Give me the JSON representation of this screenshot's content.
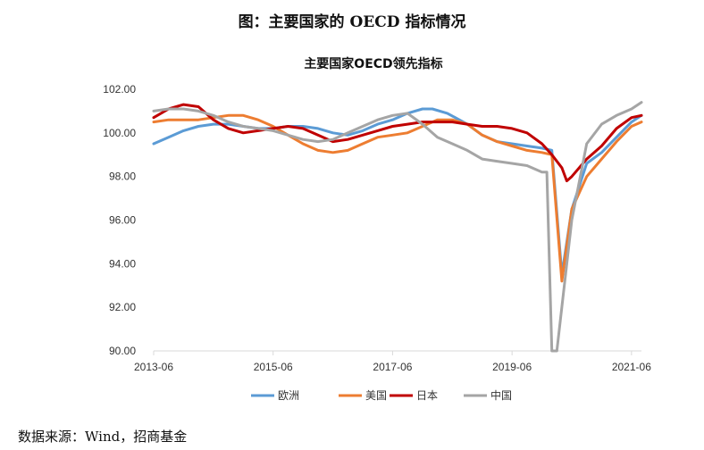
{
  "figure_title": "图：主要国家的 OECD 指标情况",
  "source_note": "数据来源：Wind，招商基金",
  "chart_data": {
    "type": "line",
    "title": "主要国家OECD领先指标",
    "xlabel": "",
    "ylabel": "",
    "ylim": [
      90,
      102
    ],
    "y_ticks": [
      "90.00",
      "92.00",
      "94.00",
      "96.00",
      "98.00",
      "100.00",
      "102.00"
    ],
    "x_tick_labels": [
      "2013-06",
      "2015-06",
      "2017-06",
      "2019-06",
      "2021-06"
    ],
    "x_range": [
      "2013-06",
      "2021-08"
    ],
    "grid": false,
    "legend_position": "bottom",
    "colors": {
      "欧洲": "#5b9bd5",
      "美国": "#ed7d31",
      "日本": "#c00000",
      "中国": "#a5a5a5"
    },
    "series": [
      {
        "name": "欧洲",
        "color": "#5b9bd5",
        "points": [
          [
            "2013-06",
            99.5
          ],
          [
            "2013-09",
            99.8
          ],
          [
            "2013-12",
            100.1
          ],
          [
            "2014-03",
            100.3
          ],
          [
            "2014-06",
            100.4
          ],
          [
            "2014-09",
            100.4
          ],
          [
            "2014-12",
            100.3
          ],
          [
            "2015-03",
            100.2
          ],
          [
            "2015-06",
            100.2
          ],
          [
            "2015-09",
            100.3
          ],
          [
            "2015-12",
            100.3
          ],
          [
            "2016-03",
            100.2
          ],
          [
            "2016-06",
            100.0
          ],
          [
            "2016-09",
            99.9
          ],
          [
            "2016-12",
            100.1
          ],
          [
            "2017-03",
            100.4
          ],
          [
            "2017-06",
            100.6
          ],
          [
            "2017-09",
            100.9
          ],
          [
            "2017-12",
            101.1
          ],
          [
            "2018-02",
            101.1
          ],
          [
            "2018-05",
            100.9
          ],
          [
            "2018-09",
            100.4
          ],
          [
            "2018-12",
            99.9
          ],
          [
            "2019-03",
            99.6
          ],
          [
            "2019-06",
            99.5
          ],
          [
            "2019-09",
            99.4
          ],
          [
            "2019-12",
            99.3
          ],
          [
            "2020-02",
            99.2
          ],
          [
            "2020-04",
            93.5
          ],
          [
            "2020-06",
            96.5
          ],
          [
            "2020-09",
            98.6
          ],
          [
            "2020-12",
            99.1
          ],
          [
            "2021-03",
            99.8
          ],
          [
            "2021-06",
            100.5
          ],
          [
            "2021-08",
            100.8
          ]
        ]
      },
      {
        "name": "美国",
        "color": "#ed7d31",
        "points": [
          [
            "2013-06",
            100.5
          ],
          [
            "2013-09",
            100.6
          ],
          [
            "2013-12",
            100.6
          ],
          [
            "2014-03",
            100.6
          ],
          [
            "2014-06",
            100.7
          ],
          [
            "2014-09",
            100.8
          ],
          [
            "2014-12",
            100.8
          ],
          [
            "2015-03",
            100.6
          ],
          [
            "2015-06",
            100.3
          ],
          [
            "2015-09",
            99.9
          ],
          [
            "2015-12",
            99.5
          ],
          [
            "2016-03",
            99.2
          ],
          [
            "2016-06",
            99.1
          ],
          [
            "2016-09",
            99.2
          ],
          [
            "2016-12",
            99.5
          ],
          [
            "2017-03",
            99.8
          ],
          [
            "2017-06",
            99.9
          ],
          [
            "2017-09",
            100.0
          ],
          [
            "2017-12",
            100.3
          ],
          [
            "2018-03",
            100.6
          ],
          [
            "2018-06",
            100.6
          ],
          [
            "2018-09",
            100.4
          ],
          [
            "2018-12",
            99.9
          ],
          [
            "2019-03",
            99.6
          ],
          [
            "2019-06",
            99.4
          ],
          [
            "2019-09",
            99.2
          ],
          [
            "2019-12",
            99.1
          ],
          [
            "2020-02",
            99.0
          ],
          [
            "2020-04",
            93.2
          ],
          [
            "2020-06",
            96.5
          ],
          [
            "2020-09",
            98.0
          ],
          [
            "2020-12",
            98.8
          ],
          [
            "2021-03",
            99.6
          ],
          [
            "2021-06",
            100.3
          ],
          [
            "2021-08",
            100.5
          ]
        ]
      },
      {
        "name": "日本",
        "color": "#c00000",
        "points": [
          [
            "2013-06",
            100.7
          ],
          [
            "2013-09",
            101.1
          ],
          [
            "2013-12",
            101.3
          ],
          [
            "2014-03",
            101.2
          ],
          [
            "2014-06",
            100.6
          ],
          [
            "2014-09",
            100.2
          ],
          [
            "2014-12",
            100.0
          ],
          [
            "2015-03",
            100.1
          ],
          [
            "2015-06",
            100.2
          ],
          [
            "2015-09",
            100.3
          ],
          [
            "2015-12",
            100.2
          ],
          [
            "2016-03",
            99.9
          ],
          [
            "2016-06",
            99.6
          ],
          [
            "2016-09",
            99.7
          ],
          [
            "2016-12",
            99.9
          ],
          [
            "2017-03",
            100.1
          ],
          [
            "2017-06",
            100.3
          ],
          [
            "2017-09",
            100.4
          ],
          [
            "2017-12",
            100.5
          ],
          [
            "2018-03",
            100.5
          ],
          [
            "2018-06",
            100.5
          ],
          [
            "2018-09",
            100.4
          ],
          [
            "2018-12",
            100.3
          ],
          [
            "2019-03",
            100.3
          ],
          [
            "2019-06",
            100.2
          ],
          [
            "2019-09",
            100.0
          ],
          [
            "2019-12",
            99.5
          ],
          [
            "2020-02",
            99.0
          ],
          [
            "2020-04",
            98.4
          ],
          [
            "2020-05",
            97.8
          ],
          [
            "2020-06",
            98.0
          ],
          [
            "2020-09",
            98.8
          ],
          [
            "2020-12",
            99.4
          ],
          [
            "2021-03",
            100.2
          ],
          [
            "2021-06",
            100.7
          ],
          [
            "2021-08",
            100.8
          ]
        ]
      },
      {
        "name": "中国",
        "color": "#a5a5a5",
        "points": [
          [
            "2013-06",
            101.0
          ],
          [
            "2013-09",
            101.1
          ],
          [
            "2013-12",
            101.1
          ],
          [
            "2014-03",
            101.0
          ],
          [
            "2014-06",
            100.8
          ],
          [
            "2014-09",
            100.5
          ],
          [
            "2014-12",
            100.3
          ],
          [
            "2015-03",
            100.2
          ],
          [
            "2015-06",
            100.1
          ],
          [
            "2015-09",
            99.9
          ],
          [
            "2015-12",
            99.7
          ],
          [
            "2016-03",
            99.6
          ],
          [
            "2016-06",
            99.7
          ],
          [
            "2016-09",
            100.0
          ],
          [
            "2016-12",
            100.3
          ],
          [
            "2017-03",
            100.6
          ],
          [
            "2017-06",
            100.8
          ],
          [
            "2017-09",
            100.9
          ],
          [
            "2017-12",
            100.4
          ],
          [
            "2018-03",
            99.8
          ],
          [
            "2018-06",
            99.5
          ],
          [
            "2018-09",
            99.2
          ],
          [
            "2018-12",
            98.8
          ],
          [
            "2019-03",
            98.7
          ],
          [
            "2019-06",
            98.6
          ],
          [
            "2019-09",
            98.5
          ],
          [
            "2019-12",
            98.2
          ],
          [
            "2020-01",
            98.2
          ],
          [
            "2020-02",
            90.0
          ],
          [
            "2020-03",
            90.0
          ],
          [
            "2020-06",
            96.0
          ],
          [
            "2020-09",
            99.5
          ],
          [
            "2020-12",
            100.4
          ],
          [
            "2021-03",
            100.8
          ],
          [
            "2021-06",
            101.1
          ],
          [
            "2021-08",
            101.4
          ]
        ]
      }
    ]
  }
}
